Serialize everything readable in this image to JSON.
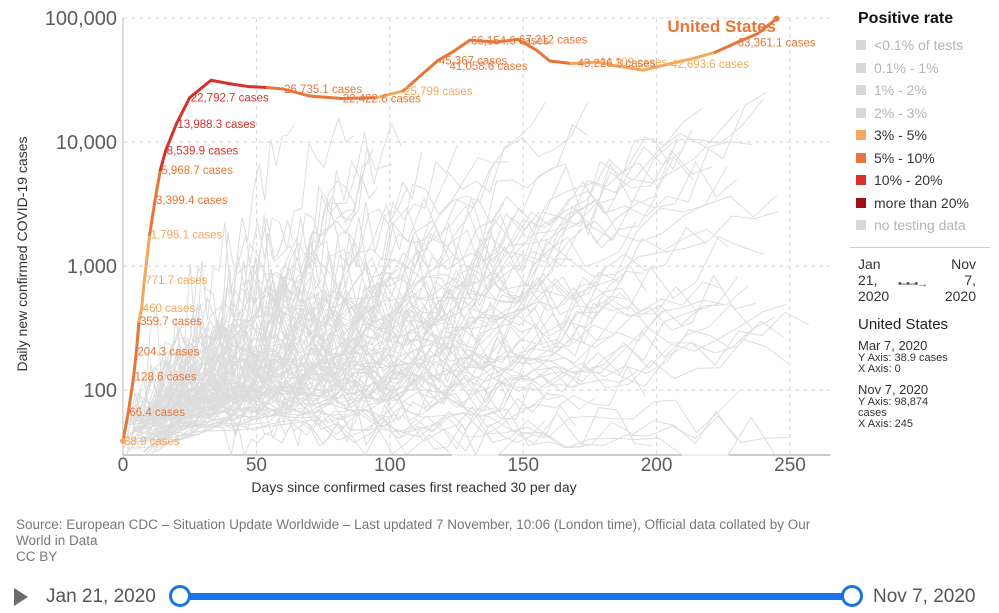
{
  "chart_data": {
    "type": "line",
    "title": "",
    "xlabel": "Days since confirmed cases first reached 30 per day",
    "ylabel": "Daily new confirmed COVID-19 cases",
    "y_scale": "log",
    "xlim": [
      0,
      265
    ],
    "ylim": [
      30,
      100000
    ],
    "x_ticks": [
      0,
      50,
      100,
      150,
      200,
      250
    ],
    "x_tick_labels": [
      "0",
      "50",
      "100",
      "150",
      "200",
      "250"
    ],
    "y_ticks": [
      100,
      1000,
      10000,
      100000
    ],
    "y_tick_labels": [
      "100",
      "1,000",
      "10,000",
      "100,000"
    ],
    "grid": true,
    "highlight_country": "United States",
    "series": [
      {
        "name": "United States",
        "points": [
          {
            "x": 0,
            "y": 38.9,
            "label": "38.9 cases",
            "rate": "3% - 5%"
          },
          {
            "x": 2,
            "y": 66.4,
            "label": "66.4 cases",
            "rate": "5% - 10%"
          },
          {
            "x": 4,
            "y": 128.6,
            "label": "128.6 cases",
            "rate": "5% - 10%"
          },
          {
            "x": 5,
            "y": 204.3,
            "label": "204.3 cases",
            "rate": "5% - 10%"
          },
          {
            "x": 6,
            "y": 359.7,
            "label": "359.7 cases",
            "rate": "5% - 10%"
          },
          {
            "x": 7,
            "y": 460,
            "label": "460 cases",
            "rate": "3% - 5%"
          },
          {
            "x": 8,
            "y": 771.7,
            "label": "771.7 cases",
            "rate": "3% - 5%"
          },
          {
            "x": 10,
            "y": 1798.1,
            "label": "1,798.1 cases",
            "rate": "3% - 5%"
          },
          {
            "x": 12,
            "y": 3399.4,
            "label": "3,399.4 cases",
            "rate": "5% - 10%"
          },
          {
            "x": 14,
            "y": 5968.7,
            "label": "5,968.7 cases",
            "rate": "5% - 10%"
          },
          {
            "x": 16,
            "y": 8539.9,
            "label": "8,539.9 cases",
            "rate": "10% - 20%"
          },
          {
            "x": 20,
            "y": 13988.3,
            "label": "13,988.3 cases",
            "rate": "10% - 20%"
          },
          {
            "x": 25,
            "y": 22792.7,
            "label": "22,792.7 cases",
            "rate": "10% - 20%"
          },
          {
            "x": 33,
            "y": 31500,
            "label": "",
            "rate": "10% - 20%"
          },
          {
            "x": 40,
            "y": 29500,
            "label": "",
            "rate": "10% - 20%"
          },
          {
            "x": 47,
            "y": 28000,
            "label": "",
            "rate": "10% - 20%"
          },
          {
            "x": 54,
            "y": 27500,
            "label": "",
            "rate": "10% - 20%"
          },
          {
            "x": 60,
            "y": 26735.1,
            "label": "26,735.1 cases",
            "rate": "5% - 10%"
          },
          {
            "x": 70,
            "y": 23500,
            "label": "",
            "rate": "5% - 10%"
          },
          {
            "x": 82,
            "y": 22422.6,
            "label": "22,422.6 cases",
            "rate": "5% - 10%"
          },
          {
            "x": 95,
            "y": 22800,
            "label": "",
            "rate": "5% - 10%"
          },
          {
            "x": 105,
            "y": 25799,
            "label": "25,799 cases",
            "rate": "3% - 5%"
          },
          {
            "x": 112,
            "y": 35000,
            "label": "",
            "rate": "5% - 10%"
          },
          {
            "x": 118,
            "y": 45367,
            "label": "45,367 cases",
            "rate": "5% - 10%"
          },
          {
            "x": 124,
            "y": 54000,
            "label": "",
            "rate": "5% - 10%"
          },
          {
            "x": 130,
            "y": 66154.6,
            "label": "66,154.6 cases",
            "rate": "5% - 10%"
          },
          {
            "x": 140,
            "y": 64000,
            "label": "",
            "rate": "5% - 10%"
          },
          {
            "x": 148,
            "y": 67212,
            "label": "67,212 cases",
            "rate": "5% - 10%"
          },
          {
            "x": 155,
            "y": 55000,
            "label": "",
            "rate": "5% - 10%"
          },
          {
            "x": 160,
            "y": 45000,
            "label": "",
            "rate": "5% - 10%"
          },
          {
            "x": 168,
            "y": 43000,
            "label": "",
            "rate": "5% - 10%"
          },
          {
            "x": 178,
            "y": 44109,
            "label": "44,109 cases",
            "rate": "3% - 5%"
          },
          {
            "x": 185,
            "y": 41000,
            "label": "",
            "rate": "3% - 5%"
          },
          {
            "x": 195,
            "y": 38000,
            "label": "",
            "rate": "3% - 5%"
          },
          {
            "x": 205,
            "y": 42693.6,
            "label": "42,693.6 cases",
            "rate": "3% - 5%"
          },
          {
            "x": 215,
            "y": 48000,
            "label": "",
            "rate": "3% - 5%"
          },
          {
            "x": 222,
            "y": 53000,
            "label": "",
            "rate": "3% - 5%"
          },
          {
            "x": 230,
            "y": 63361.1,
            "label": "63,361.1 cases",
            "rate": "5% - 10%"
          },
          {
            "x": 238,
            "y": 75000,
            "label": "",
            "rate": "5% - 10%"
          },
          {
            "x": 245,
            "y": 98874,
            "label": "",
            "rate": "5% - 10%"
          }
        ]
      }
    ],
    "extra_labels": [
      {
        "text": "41,058.6 cases",
        "x": 122,
        "y": 41058.6,
        "rate": "5% - 10%"
      },
      {
        "text": "43,226.3 cases",
        "x": 170,
        "y": 43226.3,
        "rate": "5% - 10%"
      }
    ]
  },
  "legend": {
    "title": "Positive rate",
    "items": [
      {
        "label": "<0.1% of tests",
        "color": "#d8d8d8",
        "dim": true
      },
      {
        "label": "0.1% - 1%",
        "color": "#d8d8d8",
        "dim": true
      },
      {
        "label": "1% - 2%",
        "color": "#d8d8d8",
        "dim": true
      },
      {
        "label": "2% - 3%",
        "color": "#d8d8d8",
        "dim": true
      },
      {
        "label": "3% - 5%",
        "color": "#f4a85b",
        "dim": false
      },
      {
        "label": "5% - 10%",
        "color": "#e8763a",
        "dim": false
      },
      {
        "label": "10% - 20%",
        "color": "#d7312b",
        "dim": false
      },
      {
        "label": "more than 20%",
        "color": "#a01017",
        "dim": false
      },
      {
        "label": "no testing data",
        "color": "#d8d8d8",
        "dim": true
      }
    ]
  },
  "colors": {
    "rate_3_5": "#f4a85b",
    "rate_5_10": "#e8763a",
    "rate_10_20": "#d7312b",
    "background_lines": "#dddddd",
    "accent_blue": "#1a73e8"
  },
  "time_range": {
    "start": "Jan\n21,\n2020",
    "end": "Nov\n7,\n2020"
  },
  "hover": {
    "country": "United States",
    "points": [
      {
        "date": "Mar 7, 2020",
        "y_line": "Y Axis: 38.9 cases",
        "x_line": "X Axis: 0"
      },
      {
        "date": "Nov 7, 2020",
        "y_line": "Y Axis: 98,874",
        "y_line_cont": "cases",
        "x_line": "X Axis: 245"
      }
    ]
  },
  "source": {
    "line1": "Source: European CDC – Situation Update Worldwide – Last updated 7 November, 10:06 (London time), Official data collated by Our",
    "line2": "World in Data",
    "license": "CC BY"
  },
  "timeline": {
    "start_label": "Jan 21, 2020",
    "end_label": "Nov 7, 2020"
  }
}
